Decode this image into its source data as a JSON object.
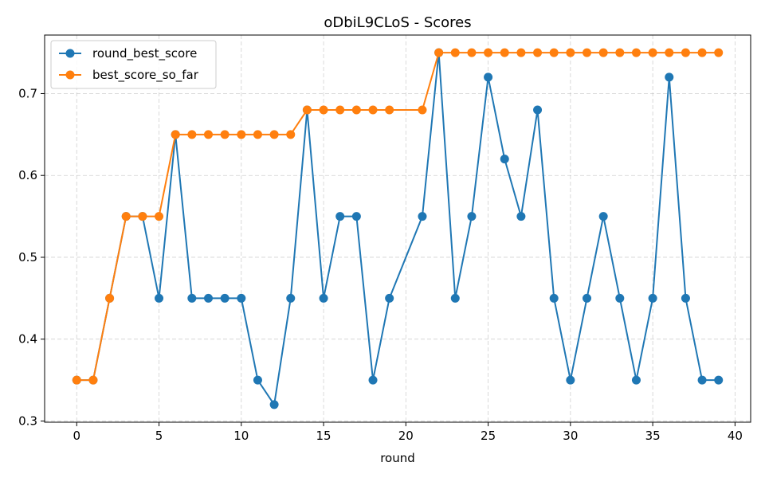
{
  "chart_data": {
    "type": "line",
    "title": "oDbiL9CLoS - Scores",
    "xlabel": "round",
    "ylabel": "",
    "xlim": [
      -1.95,
      40.95
    ],
    "ylim": [
      0.2985,
      0.7715
    ],
    "xticks": [
      0,
      5,
      10,
      15,
      20,
      25,
      30,
      35,
      40
    ],
    "yticks": [
      0.3,
      0.4,
      0.5,
      0.6,
      0.7
    ],
    "xtick_labels": [
      "0",
      "5",
      "10",
      "15",
      "20",
      "25",
      "30",
      "35",
      "40"
    ],
    "ytick_labels": [
      "0.3",
      "0.4",
      "0.5",
      "0.6",
      "0.7"
    ],
    "grid": true,
    "legend_position": "top-left",
    "series": [
      {
        "name": "round_best_score",
        "color": "#1f77b4",
        "marker": "circle",
        "x": [
          0,
          1,
          2,
          3,
          4,
          5,
          6,
          7,
          8,
          9,
          10,
          11,
          12,
          13,
          14,
          15,
          16,
          17,
          18,
          19,
          21,
          22,
          23,
          24,
          25,
          26,
          27,
          28,
          29,
          30,
          31,
          32,
          33,
          34,
          35,
          36,
          37,
          38,
          39
        ],
        "values": [
          0.35,
          0.35,
          0.45,
          0.55,
          0.55,
          0.45,
          0.65,
          0.45,
          0.45,
          0.45,
          0.45,
          0.35,
          0.32,
          0.45,
          0.68,
          0.45,
          0.55,
          0.55,
          0.35,
          0.45,
          0.55,
          0.75,
          0.45,
          0.55,
          0.72,
          0.62,
          0.55,
          0.68,
          0.45,
          0.35,
          0.45,
          0.55,
          0.45,
          0.35,
          0.45,
          0.72,
          0.45,
          0.35,
          0.35
        ]
      },
      {
        "name": "best_score_so_far",
        "color": "#ff7f0e",
        "marker": "circle",
        "x": [
          0,
          1,
          2,
          3,
          4,
          5,
          6,
          7,
          8,
          9,
          10,
          11,
          12,
          13,
          14,
          15,
          16,
          17,
          18,
          19,
          21,
          22,
          23,
          24,
          25,
          26,
          27,
          28,
          29,
          30,
          31,
          32,
          33,
          34,
          35,
          36,
          37,
          38,
          39
        ],
        "values": [
          0.35,
          0.35,
          0.45,
          0.55,
          0.55,
          0.55,
          0.65,
          0.65,
          0.65,
          0.65,
          0.65,
          0.65,
          0.65,
          0.65,
          0.68,
          0.68,
          0.68,
          0.68,
          0.68,
          0.68,
          0.68,
          0.75,
          0.75,
          0.75,
          0.75,
          0.75,
          0.75,
          0.75,
          0.75,
          0.75,
          0.75,
          0.75,
          0.75,
          0.75,
          0.75,
          0.75,
          0.75,
          0.75,
          0.75
        ]
      }
    ]
  }
}
